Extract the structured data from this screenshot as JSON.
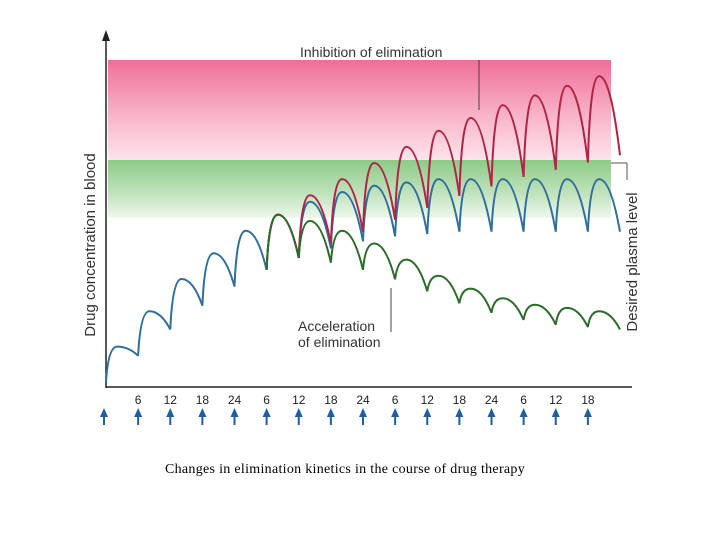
{
  "chart_data": {
    "type": "line",
    "title": "",
    "ylabel": "Drug concentration in blood",
    "band_label": "Desired plasma level",
    "annotations": {
      "top": "Inhibition of elimination",
      "bottom_line1": "Acceleration",
      "bottom_line2": "of elimination"
    },
    "x_tick_labels": [
      "6",
      "12",
      "18",
      "24",
      "6",
      "12",
      "18",
      "24",
      "6",
      "12",
      "18",
      "24",
      "6",
      "12",
      "18"
    ],
    "dose_times_hours": [
      0,
      6,
      12,
      18,
      24,
      30,
      36,
      42,
      48,
      54,
      60,
      66,
      72,
      78,
      84,
      90
    ],
    "xlim_hours": [
      0,
      96
    ],
    "ylim": [
      0,
      100
    ],
    "bands": {
      "toxic": [
        70,
        100
      ],
      "desired": [
        52,
        70
      ]
    },
    "colors": {
      "normal": "#2f6e9e",
      "inhibited": "#b02546",
      "accelerated": "#2c6b2a",
      "toxic_band": "#f2789f",
      "desired_band": "#8fca8a",
      "dose_arrow": "#1f5fa0"
    },
    "series": [
      {
        "label": "normal",
        "peak_values": [
          11,
          22,
          32,
          40,
          47,
          52,
          56,
          59,
          61,
          62,
          63,
          63,
          63,
          63,
          63,
          63
        ]
      },
      {
        "label": "inhibited",
        "peak_values": [
          null,
          null,
          null,
          null,
          null,
          52,
          58,
          63,
          68,
          73,
          78,
          82,
          86,
          89,
          92,
          95
        ]
      },
      {
        "label": "accelerated",
        "peak_values": [
          null,
          null,
          null,
          null,
          null,
          52,
          50,
          47,
          43,
          38,
          33,
          29,
          26,
          24,
          23,
          22
        ]
      }
    ]
  },
  "caption": "Changes in elimination kinetics in the course of drug therapy"
}
